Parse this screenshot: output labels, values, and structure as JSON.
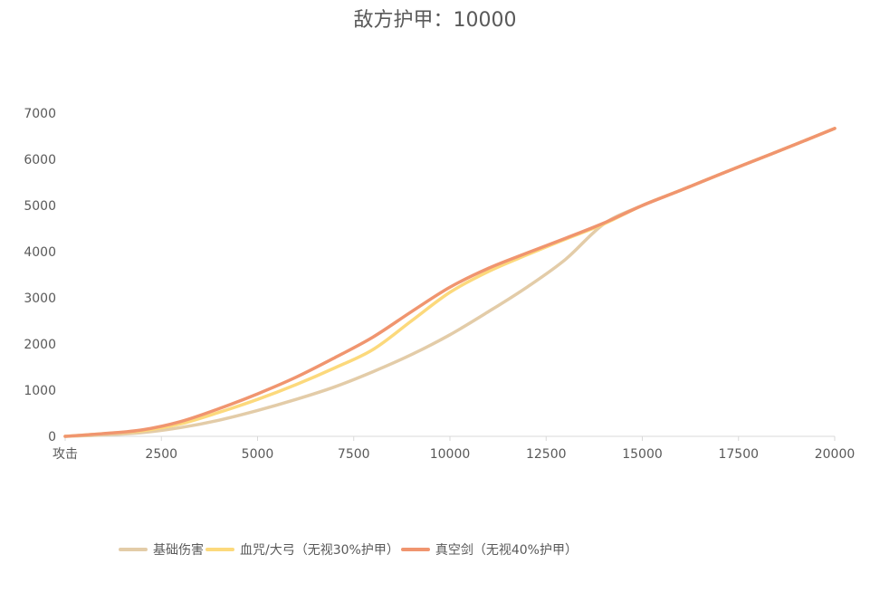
{
  "chart_data": {
    "type": "line",
    "title": "敌方护甲：10000",
    "xlabel": "",
    "ylabel": "",
    "x_first_label": "攻击",
    "xlim": [
      0,
      20000
    ],
    "ylim": [
      0,
      7000
    ],
    "xticks": [
      "攻击",
      "2500",
      "5000",
      "7500",
      "10000",
      "12500",
      "15000",
      "17500",
      "20000"
    ],
    "yticks": [
      "0",
      "1000",
      "2000",
      "3000",
      "4000",
      "5000",
      "6000",
      "7000"
    ],
    "grid": false,
    "legend_position": "bottom-left",
    "x": [
      0,
      1000,
      2000,
      3000,
      4000,
      5000,
      6000,
      7000,
      8000,
      9000,
      10000,
      11000,
      12000,
      13000,
      14000,
      15000,
      16000,
      17000,
      18000,
      19000,
      20000
    ],
    "series": [
      {
        "name": "基础伤害",
        "color": "#e3cca8",
        "values": [
          0,
          30,
          80,
          190,
          350,
          560,
          800,
          1070,
          1400,
          1770,
          2200,
          2700,
          3230,
          3830,
          4600,
          5000,
          5330,
          5670,
          6000,
          6330,
          6670
        ]
      },
      {
        "name": "血咒/大弓（无视30%护甲）",
        "color": "#fcd97c",
        "values": [
          0,
          60,
          120,
          270,
          520,
          800,
          1120,
          1480,
          1880,
          2500,
          3120,
          3570,
          3930,
          4270,
          4600,
          5000,
          5330,
          5670,
          6000,
          6330,
          6670
        ]
      },
      {
        "name": "真空剑（无视40%护甲）",
        "color": "#f0956f",
        "values": [
          0,
          60,
          140,
          320,
          600,
          920,
          1280,
          1700,
          2150,
          2700,
          3230,
          3640,
          3970,
          4290,
          4620,
          5000,
          5330,
          5670,
          6000,
          6330,
          6670
        ]
      }
    ]
  }
}
